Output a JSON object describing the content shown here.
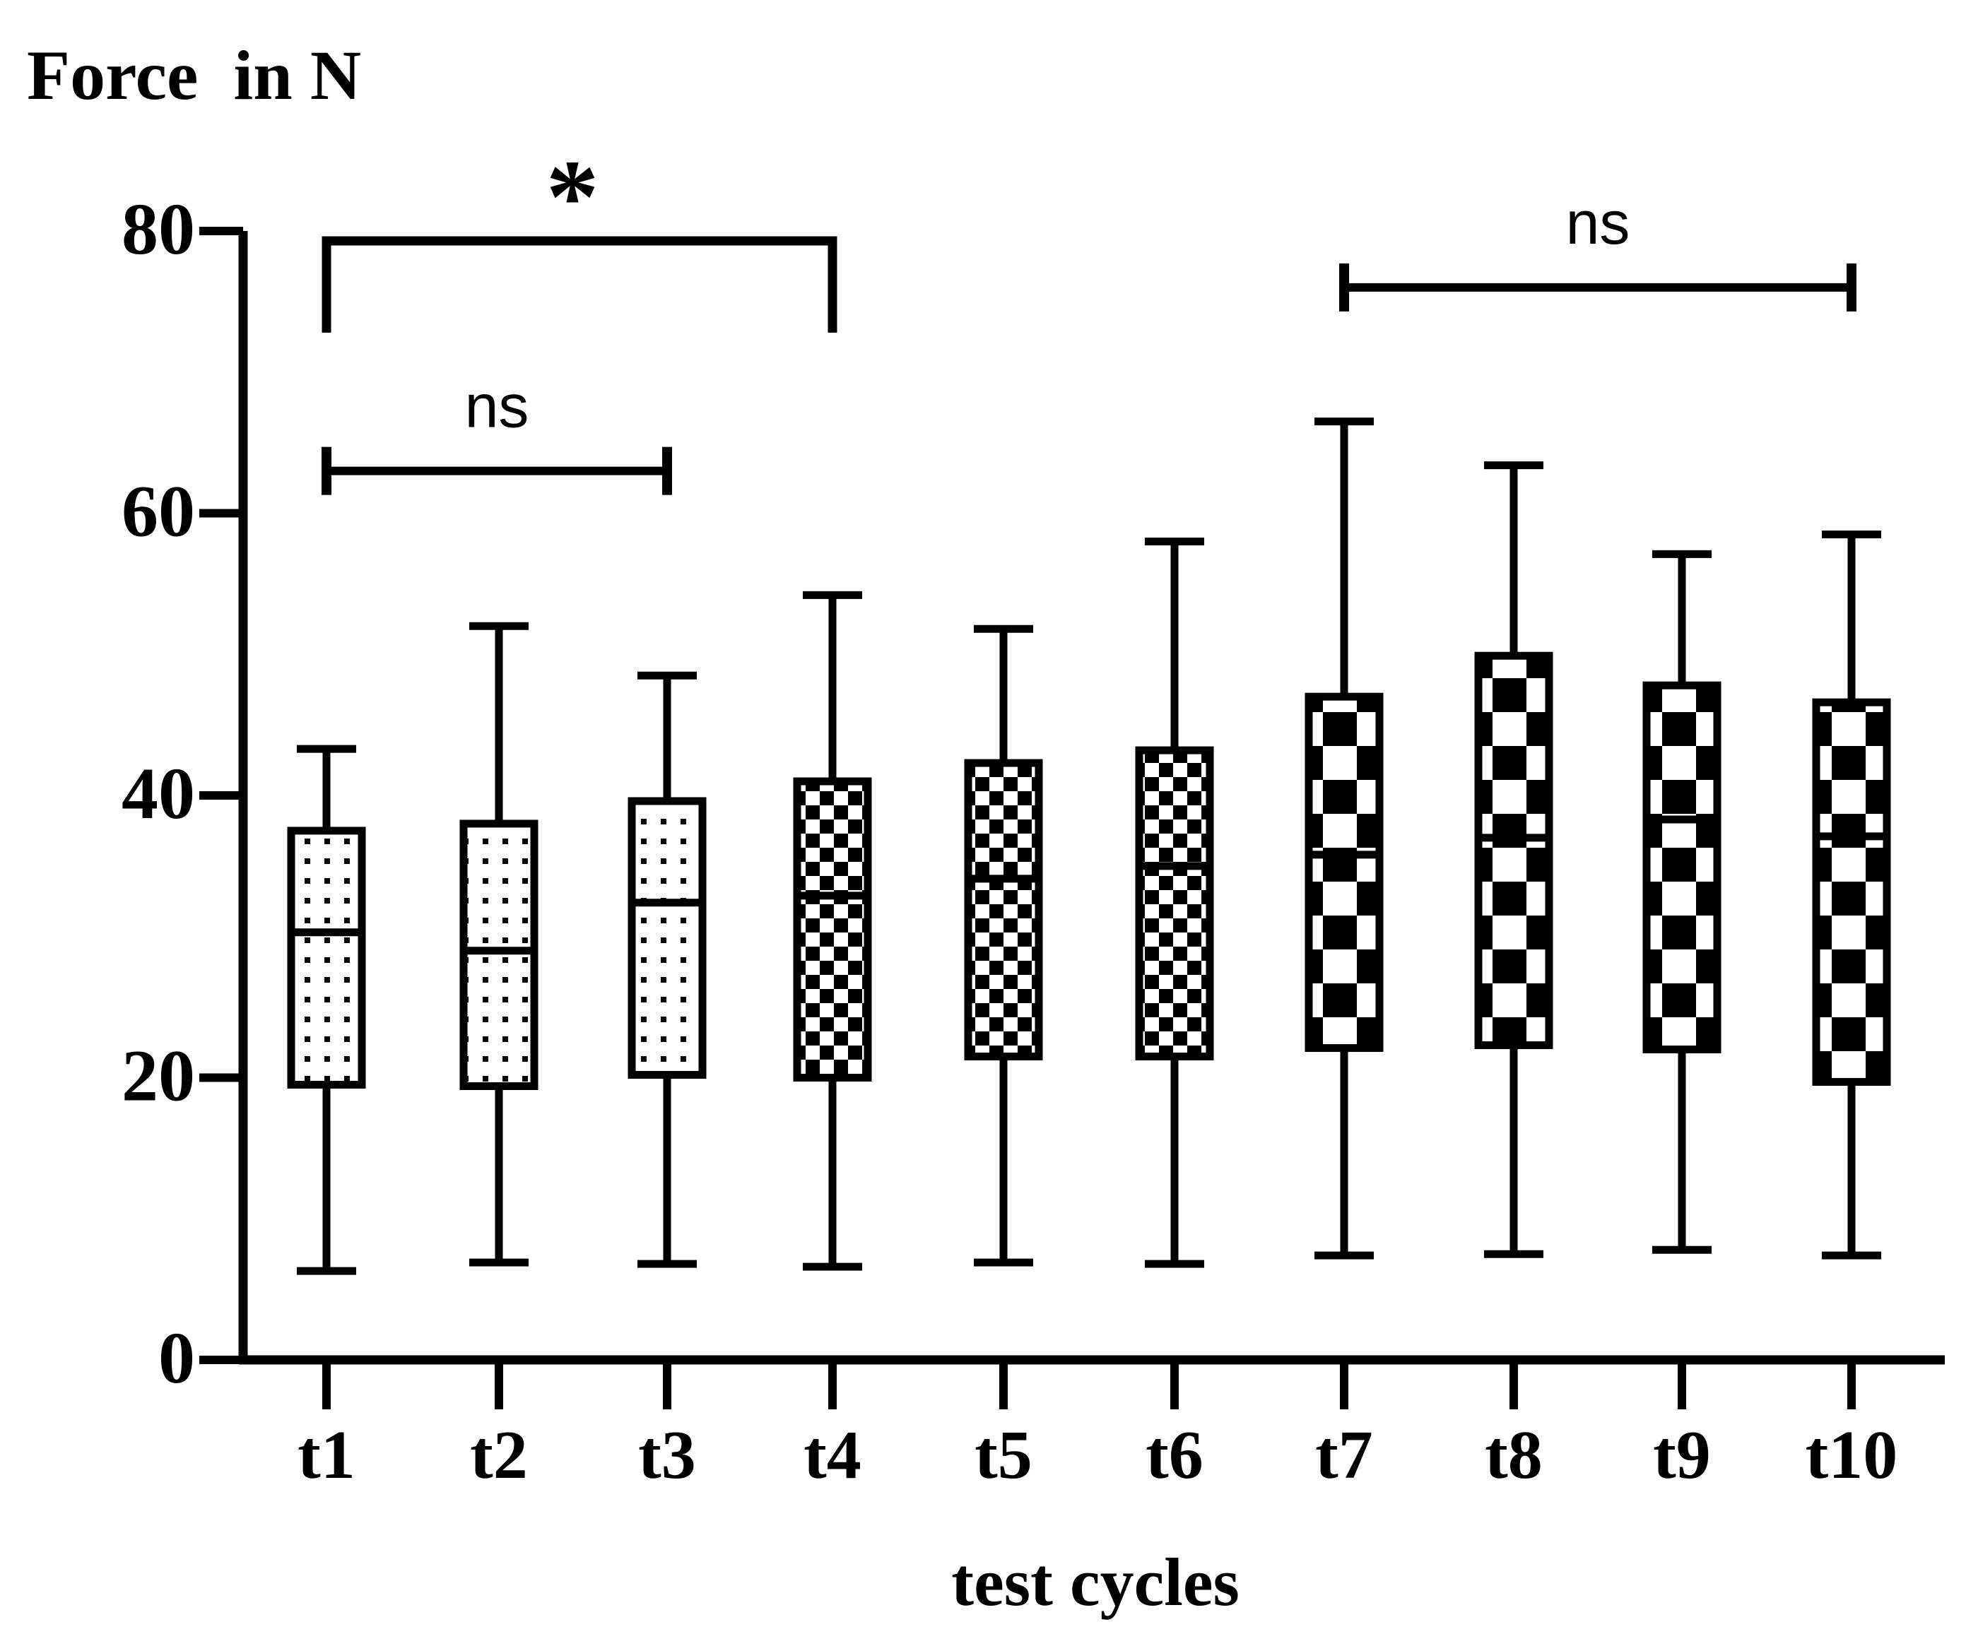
{
  "chart_data": {
    "type": "boxplot",
    "ylabel": "Force  in N",
    "xlabel": "test cycles",
    "ylim": [
      0,
      80
    ],
    "yticks": [
      0,
      20,
      40,
      60,
      80
    ],
    "categories": [
      "t1",
      "t2",
      "t3",
      "t4",
      "t5",
      "t6",
      "t7",
      "t8",
      "t9",
      "t10"
    ],
    "boxes": [
      {
        "label": "t1",
        "min": 6.3,
        "q1": 19.5,
        "median": 30.3,
        "q3": 37.5,
        "max": 43.3,
        "pattern": "dots"
      },
      {
        "label": "t2",
        "min": 6.9,
        "q1": 19.4,
        "median": 29.0,
        "q3": 38.0,
        "max": 52.0,
        "pattern": "dots"
      },
      {
        "label": "t3",
        "min": 6.8,
        "q1": 20.2,
        "median": 32.4,
        "q3": 39.6,
        "max": 48.5,
        "pattern": "dots"
      },
      {
        "label": "t4",
        "min": 6.6,
        "q1": 20.0,
        "median": 32.9,
        "q3": 41.0,
        "max": 54.2,
        "pattern": "check-small"
      },
      {
        "label": "t5",
        "min": 6.9,
        "q1": 21.5,
        "median": 34.1,
        "q3": 42.3,
        "max": 51.8,
        "pattern": "check-small"
      },
      {
        "label": "t6",
        "min": 6.8,
        "q1": 21.5,
        "median": 35.0,
        "q3": 43.2,
        "max": 58.0,
        "pattern": "check-small"
      },
      {
        "label": "t7",
        "min": 7.4,
        "q1": 22.1,
        "median": 35.8,
        "q3": 47.0,
        "max": 66.5,
        "pattern": "check-large"
      },
      {
        "label": "t8",
        "min": 7.5,
        "q1": 22.3,
        "median": 37.0,
        "q3": 49.9,
        "max": 63.4,
        "pattern": "check-large"
      },
      {
        "label": "t9",
        "min": 7.8,
        "q1": 22.0,
        "median": 38.3,
        "q3": 47.8,
        "max": 57.1,
        "pattern": "check-large"
      },
      {
        "label": "t10",
        "min": 7.4,
        "q1": 19.7,
        "median": 37.1,
        "q3": 46.6,
        "max": 58.5,
        "pattern": "check-large"
      }
    ],
    "annotations": [
      {
        "from": "t1",
        "to": "t4",
        "label": "*",
        "style": "bracket",
        "y": 79.3,
        "tick_bottom": 72.8
      },
      {
        "from": "t1",
        "to": "t3",
        "label": "ns",
        "style": "capped",
        "y": 63.0
      },
      {
        "from": "t7",
        "to": "t10",
        "label": "ns",
        "style": "capped",
        "y": 76.0
      }
    ]
  }
}
